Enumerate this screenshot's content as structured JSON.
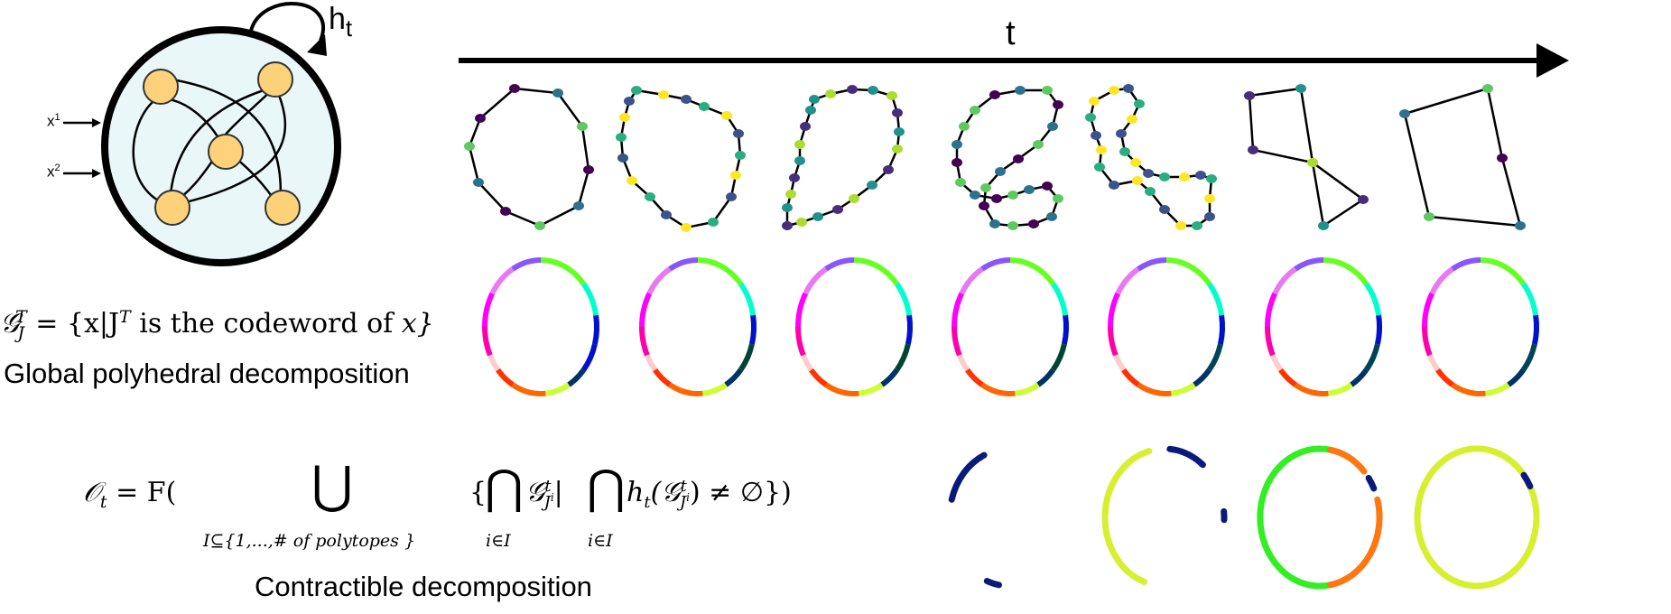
{
  "rnn": {
    "hidden_label": "h",
    "hidden_subscript": "t",
    "inputs": [
      {
        "base": "x",
        "sup": "1"
      },
      {
        "base": "x",
        "sup": "2"
      }
    ]
  },
  "time_axis": {
    "label": "t"
  },
  "row1_label": {
    "formula_lhs": "𝒢",
    "formula_lhs_sub": "J",
    "formula_lhs_sup": "T",
    "formula_eq": " = {x|J",
    "formula_eq_sup": "T",
    "formula_mid": " is the codeword of ",
    "formula_end": "x}",
    "caption": "Global polyhedral decomposition"
  },
  "row2_label": {
    "formula_O": "𝒪",
    "formula_O_sub": "t",
    "formula_eq": " = F(",
    "union_symbol": "⋃",
    "union_under": "I⊆{1,...,# of polytopes }",
    "set_open": "{",
    "cap_symbol": "⋂",
    "cap_under": "i∈I",
    "G": "𝒢",
    "G_sub": "J",
    "G_sub_sup": "i",
    "G_sup": "t",
    "bar": "|",
    "h": "h",
    "h_sub": "t",
    "paren_G": "(𝒢",
    "neq": ") ≠ ∅})",
    "caption": "Contractible decomposition"
  },
  "colors": {
    "rnn_fill": "#eaf7f8",
    "node_fill": "#fdd27a",
    "node_stroke": "#333333",
    "viridis": [
      "#440154",
      "#472d7b",
      "#3b528b",
      "#2c728e",
      "#21918c",
      "#28ae80",
      "#5ec962",
      "#addc30",
      "#fde725"
    ]
  },
  "polytope_colors": [
    [
      "#ff00ff",
      "#e879f0",
      "#8855ff",
      "#66ff22",
      "#00ffcc",
      "#0011cc",
      "#0011cc",
      "#003366",
      "#ccff33",
      "#ff6600",
      "#ff3300",
      "#ffcccc",
      "#ff00aa"
    ],
    [
      "#ff00ff",
      "#e879f0",
      "#8855ff",
      "#66ff22",
      "#00ffcc",
      "#0011cc",
      "#004433",
      "#003366",
      "#ccff33",
      "#ff6600",
      "#ff3300",
      "#ffcccc",
      "#ff00aa"
    ],
    [
      "#ff00ff",
      "#e879f0",
      "#8855ff",
      "#66ff22",
      "#00ffcc",
      "#0011cc",
      "#004433",
      "#003366",
      "#ccff33",
      "#ff6600",
      "#ff3300",
      "#ffcccc",
      "#ff00aa"
    ],
    [
      "#ff00ff",
      "#e879f0",
      "#8855ff",
      "#66ff22",
      "#00ffcc",
      "#0011cc",
      "#004433",
      "#003366",
      "#ccff33",
      "#ff6600",
      "#ff3300",
      "#ffcccc",
      "#ff00aa"
    ],
    [
      "#ff00ff",
      "#e879f0",
      "#8855ff",
      "#66ff22",
      "#00ffcc",
      "#0011cc",
      "#004455",
      "#003366",
      "#ccff33",
      "#ff6600",
      "#ff3300",
      "#ffcccc",
      "#ff00aa"
    ],
    [
      "#ff00ff",
      "#e879f0",
      "#8855ff",
      "#66ff22",
      "#00ffcc",
      "#0011cc",
      "#004455",
      "#003366",
      "#ccff33",
      "#ff6600",
      "#ff3300",
      "#ffcccc",
      "#ff00aa"
    ],
    [
      "#ff00ff",
      "#e879f0",
      "#8855ff",
      "#66ff22",
      "#00ffcc",
      "#0011cc",
      "#004455",
      "#003366",
      "#ccff33",
      "#ff6600",
      "#ff3300",
      "#ffcccc",
      "#ff00aa"
    ]
  ],
  "contractible_colors": {
    "navy": "#0a1a7a",
    "yellow_green": "#d6f030",
    "green": "#33ee22",
    "orange": "#ff7711"
  }
}
